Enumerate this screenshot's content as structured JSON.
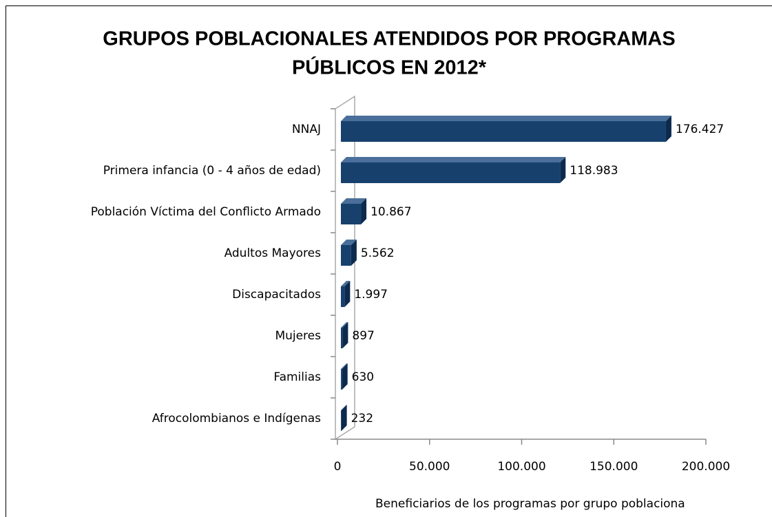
{
  "chart_data": {
    "type": "bar",
    "orientation": "horizontal",
    "title": [
      "GRUPOS POBLACIONALES ATENDIDOS POR PROGRAMAS",
      "PÚBLICOS EN 2012*"
    ],
    "x_label": "Beneficiarios de los programas por grupo poblaciona",
    "categories": [
      "NNAJ",
      "Primera infancia (0 - 4 años de edad)",
      "Población Víctima del Conflicto Armado",
      "Adultos Mayores",
      "Discapacitados",
      "Mujeres",
      "Familias",
      "Afrocolombianos e Indígenas"
    ],
    "values": [
      176427,
      118983,
      10867,
      5562,
      1997,
      897,
      630,
      232
    ],
    "value_labels": [
      "176.427",
      "118.983",
      "10.867",
      "5.562",
      "1.997",
      "897",
      "630",
      "232"
    ],
    "color": "#17406d",
    "xlim": [
      0,
      200000
    ],
    "xticks": [
      0,
      {
        "value": 50000,
        "label": "50.000"
      },
      {
        "value": 100000,
        "label": "100.000"
      },
      {
        "value": 150000,
        "label": "150.000"
      },
      {
        "value": 200000,
        "label": "200.000"
      }
    ]
  }
}
